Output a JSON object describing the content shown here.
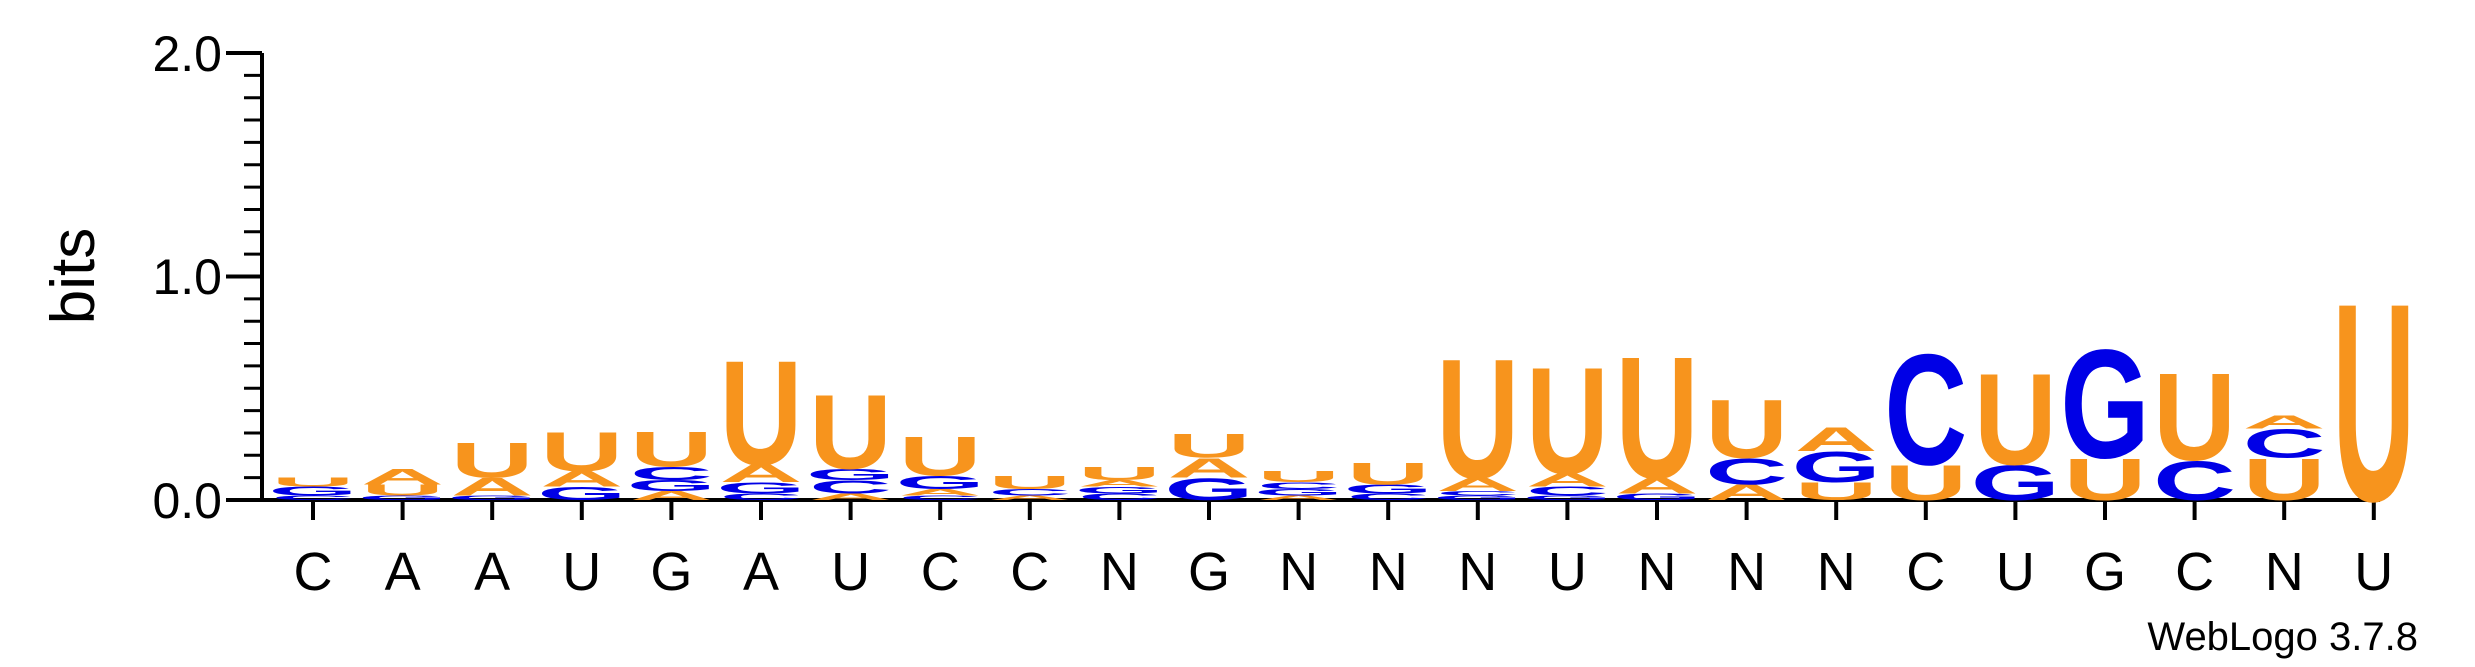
{
  "chart_data": {
    "type": "sequence-logo",
    "ylabel": "bits",
    "ylim": [
      0,
      2.0
    ],
    "yticks": [
      "0.0",
      "1.0",
      "2.0"
    ],
    "credit": "WebLogo 3.7.8",
    "colors": {
      "U": "#F7941D",
      "A": "#F7941D",
      "C": "#0000E6",
      "G": "#0000E6"
    },
    "positions": [
      "C",
      "A",
      "A",
      "U",
      "G",
      "A",
      "U",
      "C",
      "C",
      "N",
      "G",
      "N",
      "N",
      "N",
      "U",
      "N",
      "N",
      "N",
      "C",
      "U",
      "G",
      "C",
      "N",
      "U"
    ],
    "stacks": [
      [
        [
          "C",
          0.02
        ],
        [
          "G",
          0.04
        ],
        [
          "U",
          0.04
        ]
      ],
      [
        [
          "G",
          0.02
        ],
        [
          "U",
          0.05
        ],
        [
          "A",
          0.07
        ]
      ],
      [
        [
          "G",
          0.02
        ],
        [
          "A",
          0.08
        ],
        [
          "U",
          0.16
        ]
      ],
      [
        [
          "G",
          0.06
        ],
        [
          "A",
          0.07
        ],
        [
          "U",
          0.18
        ]
      ],
      [
        [
          "A",
          0.04
        ],
        [
          "G",
          0.05
        ],
        [
          "C",
          0.06
        ],
        [
          "U",
          0.16
        ]
      ],
      [
        [
          "C",
          0.03
        ],
        [
          "G",
          0.05
        ],
        [
          "A",
          0.08
        ],
        [
          "U",
          0.48
        ]
      ],
      [
        [
          "A",
          0.03
        ],
        [
          "C",
          0.06
        ],
        [
          "G",
          0.05
        ],
        [
          "U",
          0.34
        ]
      ],
      [
        [
          "C",
          0.02
        ],
        [
          "A",
          0.03
        ],
        [
          "G",
          0.06
        ],
        [
          "U",
          0.18
        ]
      ],
      [
        [
          "A",
          0.02
        ],
        [
          "C",
          0.03
        ],
        [
          "U",
          0.06
        ]
      ],
      [
        [
          "C",
          0.03
        ],
        [
          "G",
          0.03
        ],
        [
          "A",
          0.03
        ],
        [
          "U",
          0.06
        ]
      ],
      [
        [
          "G",
          0.1
        ],
        [
          "A",
          0.09
        ],
        [
          "U",
          0.11
        ]
      ],
      [
        [
          "A",
          0.02
        ],
        [
          "G",
          0.03
        ],
        [
          "C",
          0.03
        ],
        [
          "U",
          0.05
        ]
      ],
      [
        [
          "C",
          0.03
        ],
        [
          "G",
          0.04
        ],
        [
          "U",
          0.1
        ]
      ],
      [
        [
          "G",
          0.02
        ],
        [
          "C",
          0.02
        ],
        [
          "A",
          0.06
        ],
        [
          "U",
          0.55
        ]
      ],
      [
        [
          "G",
          0.02
        ],
        [
          "C",
          0.04
        ],
        [
          "A",
          0.06
        ],
        [
          "U",
          0.49
        ]
      ],
      [
        [
          "G",
          0.03
        ],
        [
          "A",
          0.07
        ],
        [
          "U",
          0.56
        ]
      ],
      [
        [
          "A",
          0.07
        ],
        [
          "C",
          0.12
        ],
        [
          "U",
          0.27
        ]
      ],
      [
        [
          "U",
          0.08
        ],
        [
          "G",
          0.14
        ],
        [
          "A",
          0.11
        ]
      ],
      [
        [
          "U",
          0.16
        ],
        [
          "C",
          0.51
        ]
      ],
      [
        [
          "G",
          0.16
        ],
        [
          "U",
          0.42
        ]
      ],
      [
        [
          "U",
          0.19
        ],
        [
          "G",
          0.5
        ]
      ],
      [
        [
          "C",
          0.18
        ],
        [
          "U",
          0.4
        ]
      ],
      [
        [
          "U",
          0.19
        ],
        [
          "C",
          0.13
        ],
        [
          "A",
          0.06
        ]
      ],
      [
        [
          "U",
          0.91
        ]
      ]
    ]
  }
}
